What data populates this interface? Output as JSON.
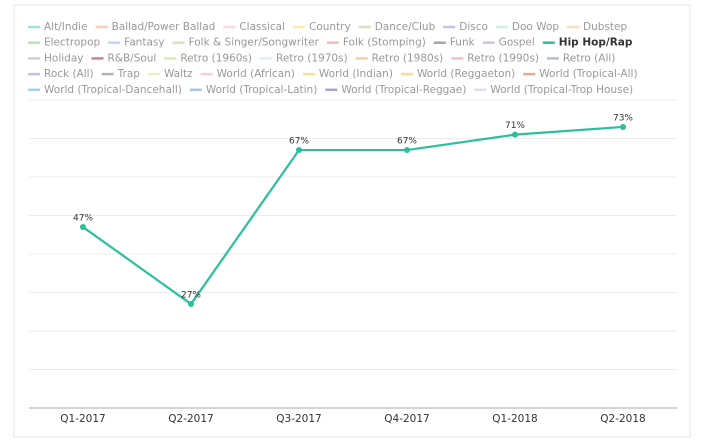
{
  "chart_data": {
    "type": "line",
    "categories": [
      "Q1-2017",
      "Q2-2017",
      "Q3-2017",
      "Q4-2017",
      "Q1-2018",
      "Q2-2018"
    ],
    "ylim": [
      0,
      80
    ],
    "yticks": [
      0,
      10,
      20,
      30,
      40,
      50,
      60,
      70,
      80
    ],
    "grid": true,
    "series": [
      {
        "name": "Alt/Indie",
        "color": "#4ecdc4",
        "visible": false,
        "values": [
          null,
          null,
          null,
          null,
          null,
          null
        ]
      },
      {
        "name": "Ballad/Power Ballad",
        "color": "#f4a582",
        "visible": false,
        "values": [
          null,
          null,
          null,
          null,
          null,
          null
        ]
      },
      {
        "name": "Classical",
        "color": "#f7b6d2",
        "visible": false,
        "values": [
          null,
          null,
          null,
          null,
          null,
          null
        ]
      },
      {
        "name": "Country",
        "color": "#ffd966",
        "visible": false,
        "values": [
          null,
          null,
          null,
          null,
          null,
          null
        ]
      },
      {
        "name": "Dance/Club",
        "color": "#c7c08a",
        "visible": false,
        "values": [
          null,
          null,
          null,
          null,
          null,
          null
        ]
      },
      {
        "name": "Disco",
        "color": "#9b8fd4",
        "visible": false,
        "values": [
          null,
          null,
          null,
          null,
          null,
          null
        ]
      },
      {
        "name": "Doo Wop",
        "color": "#a8e6cf",
        "visible": false,
        "values": [
          null,
          null,
          null,
          null,
          null,
          null
        ]
      },
      {
        "name": "Dubstep",
        "color": "#f6c28b",
        "visible": false,
        "values": [
          null,
          null,
          null,
          null,
          null,
          null
        ]
      },
      {
        "name": "Electropop",
        "color": "#7fd17f",
        "visible": false,
        "values": [
          null,
          null,
          null,
          null,
          null,
          null
        ]
      },
      {
        "name": "Fantasy",
        "color": "#8fb8e8",
        "visible": false,
        "values": [
          null,
          null,
          null,
          null,
          null,
          null
        ]
      },
      {
        "name": "Folk & Singer/Songwriter",
        "color": "#b5c98a",
        "visible": false,
        "values": [
          null,
          null,
          null,
          null,
          null,
          null
        ]
      },
      {
        "name": "Folk (Stomping)",
        "color": "#e88a7f",
        "visible": false,
        "values": [
          null,
          null,
          null,
          null,
          null,
          null
        ]
      },
      {
        "name": "Funk",
        "color": "#555f6e",
        "visible": false,
        "values": [
          null,
          null,
          null,
          null,
          null,
          null
        ]
      },
      {
        "name": "Gospel",
        "color": "#b08fc7",
        "visible": false,
        "values": [
          null,
          null,
          null,
          null,
          null,
          null
        ]
      },
      {
        "name": "Hip Hop/Rap",
        "color": "#2bbf9d",
        "visible": true,
        "values": [
          47,
          27,
          67,
          67,
          71,
          73
        ],
        "value_labels": [
          "47%",
          "27%",
          "67%",
          "67%",
          "71%",
          "73%"
        ]
      },
      {
        "name": "Holiday",
        "color": "#aaaaaa",
        "visible": false,
        "values": [
          null,
          null,
          null,
          null,
          null,
          null
        ]
      },
      {
        "name": "R&B/Soul",
        "color": "#8b2252",
        "visible": false,
        "values": [
          null,
          null,
          null,
          null,
          null,
          null
        ]
      },
      {
        "name": "Retro (1960s)",
        "color": "#b5d96b",
        "visible": false,
        "values": [
          null,
          null,
          null,
          null,
          null,
          null
        ]
      },
      {
        "name": "Retro (1970s)",
        "color": "#bde7ef",
        "visible": false,
        "values": [
          null,
          null,
          null,
          null,
          null,
          null
        ]
      },
      {
        "name": "Retro (1980s)",
        "color": "#f2a65a",
        "visible": false,
        "values": [
          null,
          null,
          null,
          null,
          null,
          null
        ]
      },
      {
        "name": "Retro (1990s)",
        "color": "#f28b8b",
        "visible": false,
        "values": [
          null,
          null,
          null,
          null,
          null,
          null
        ]
      },
      {
        "name": "Retro (All)",
        "color": "#7f8fa6",
        "visible": false,
        "values": [
          null,
          null,
          null,
          null,
          null,
          null
        ]
      },
      {
        "name": "Rock (All)",
        "color": "#9c8ec9",
        "visible": false,
        "values": [
          null,
          null,
          null,
          null,
          null,
          null
        ]
      },
      {
        "name": "Trap",
        "color": "#777777",
        "visible": false,
        "values": [
          null,
          null,
          null,
          null,
          null,
          null
        ]
      },
      {
        "name": "Waltz",
        "color": "#d4e68a",
        "visible": false,
        "values": [
          null,
          null,
          null,
          null,
          null,
          null
        ]
      },
      {
        "name": "World (African)",
        "color": "#f4a6d0",
        "visible": false,
        "values": [
          null,
          null,
          null,
          null,
          null,
          null
        ]
      },
      {
        "name": "World (Indian)",
        "color": "#f4c542",
        "visible": false,
        "values": [
          null,
          null,
          null,
          null,
          null,
          null
        ]
      },
      {
        "name": "World (Reggaeton)",
        "color": "#f2c14e",
        "visible": false,
        "values": [
          null,
          null,
          null,
          null,
          null,
          null
        ]
      },
      {
        "name": "World (Tropical-All)",
        "color": "#e0603a",
        "visible": false,
        "values": [
          null,
          null,
          null,
          null,
          null,
          null
        ]
      },
      {
        "name": "World (Tropical-Dancehall)",
        "color": "#5dade2",
        "visible": false,
        "values": [
          null,
          null,
          null,
          null,
          null,
          null
        ]
      },
      {
        "name": "World (Tropical-Latin)",
        "color": "#5b9bd5",
        "visible": false,
        "values": [
          null,
          null,
          null,
          null,
          null,
          null
        ]
      },
      {
        "name": "World (Tropical-Reggae)",
        "color": "#6c5b9e",
        "visible": false,
        "values": [
          null,
          null,
          null,
          null,
          null,
          null
        ]
      },
      {
        "name": "World (Tropical-Trop House)",
        "color": "#c5c5e8",
        "visible": false,
        "values": [
          null,
          null,
          null,
          null,
          null,
          null
        ]
      }
    ]
  }
}
